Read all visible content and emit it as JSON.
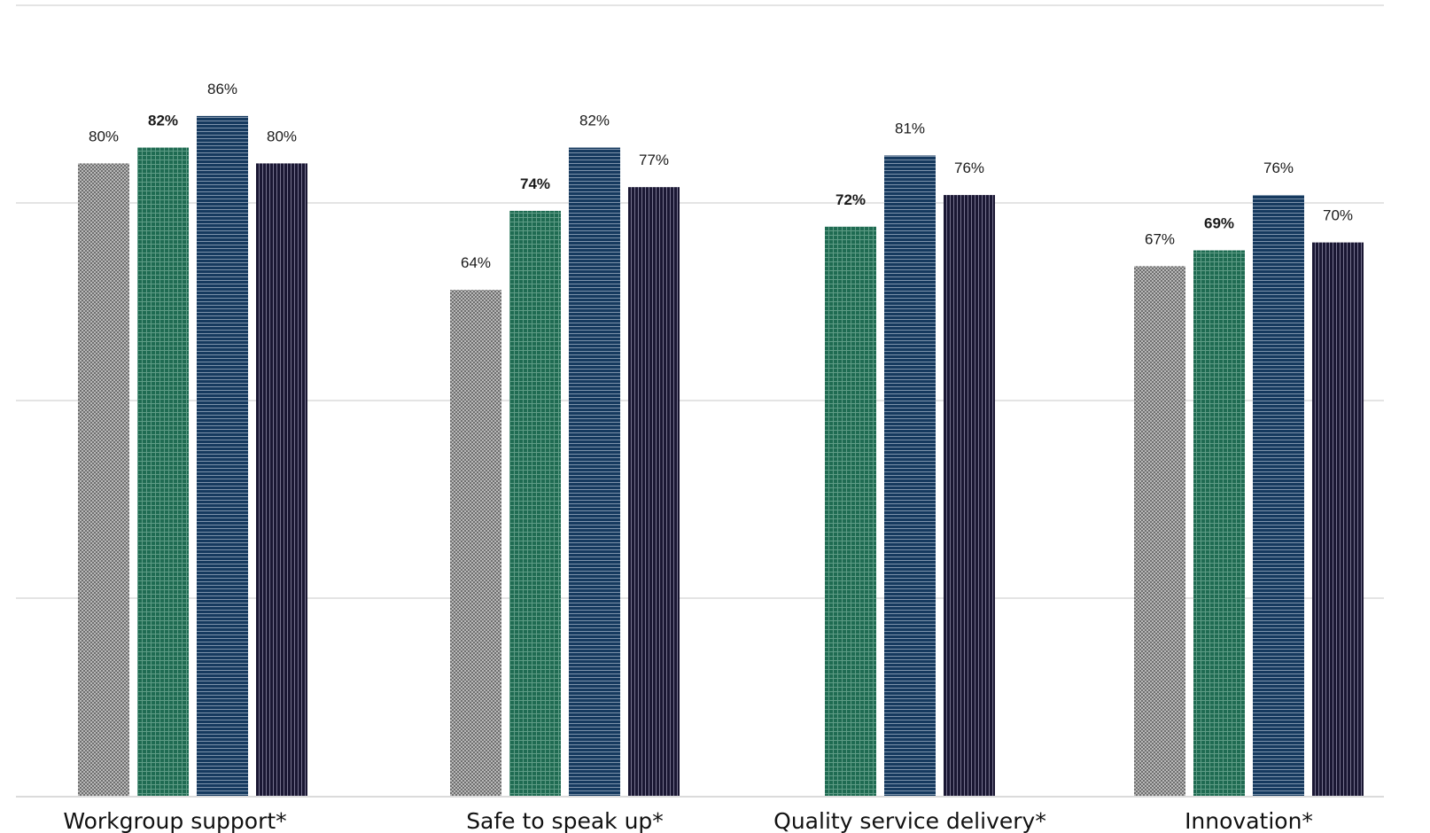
{
  "chart_data": {
    "type": "bar",
    "categories": [
      "Workgroup support*",
      "Safe to speak up*",
      "Quality service delivery*",
      "Innovation*"
    ],
    "series": [
      {
        "values": [
          80,
          64,
          null,
          67
        ],
        "labels": [
          "80%",
          "64%",
          "",
          "67%"
        ],
        "color": "#8a8a8a",
        "pattern": "checker"
      },
      {
        "values": [
          82,
          74,
          72,
          69
        ],
        "labels": [
          "82%",
          "74%",
          "72%",
          "69%"
        ],
        "color": "#1f6b52",
        "pattern": "grid",
        "label_bold": true
      },
      {
        "values": [
          86,
          82,
          81,
          76
        ],
        "labels": [
          "86%",
          "82%",
          "81%",
          "76%"
        ],
        "color": "#163a5f",
        "pattern": "horizontal"
      },
      {
        "values": [
          80,
          77,
          76,
          70
        ],
        "labels": [
          "80%",
          "77%",
          "76%",
          "70%"
        ],
        "color": "#1a1733",
        "pattern": "vertical"
      }
    ],
    "ylim": [
      0,
      100
    ],
    "grid": true,
    "legend": "none"
  }
}
